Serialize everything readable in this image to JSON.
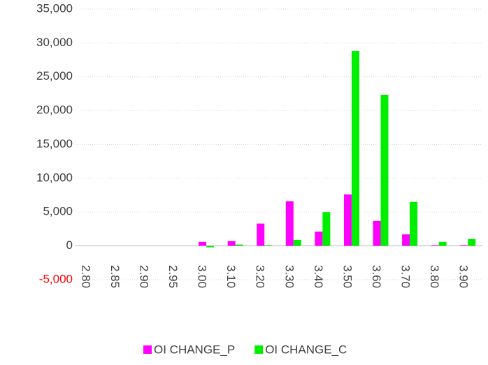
{
  "chart_data": {
    "type": "bar",
    "categories": [
      "2.80",
      "2.85",
      "2.90",
      "2.95",
      "3.00",
      "3.10",
      "3.20",
      "3.30",
      "3.40",
      "3.50",
      "3.60",
      "3.70",
      "3.80",
      "3.90"
    ],
    "series": [
      {
        "name": "OI CHANGE_P",
        "color": "#ff00ff",
        "values": [
          0,
          0,
          0,
          0,
          600,
          700,
          3300,
          6600,
          2100,
          7600,
          3700,
          1700,
          100,
          100
        ]
      },
      {
        "name": "OI CHANGE_C",
        "color": "#00ee00",
        "values": [
          0,
          0,
          0,
          0,
          -200,
          200,
          100,
          900,
          5000,
          28800,
          22300,
          6500,
          600,
          1000
        ]
      }
    ],
    "ylim": [
      -5000,
      35000
    ],
    "yticks": [
      {
        "value": -5000,
        "label": "-5,000"
      },
      0,
      {
        "value": 5000,
        "label": "5,000"
      },
      {
        "value": 10000,
        "label": "10,000"
      },
      {
        "value": 15000,
        "label": "15,000"
      },
      {
        "value": 20000,
        "label": "20,000"
      },
      {
        "value": 25000,
        "label": "25,000"
      },
      {
        "value": 30000,
        "label": "30,000"
      },
      {
        "value": 35000,
        "label": "35,000"
      }
    ],
    "negative_tick_color": "#ff0000",
    "grid": true,
    "legend": "bottom"
  }
}
